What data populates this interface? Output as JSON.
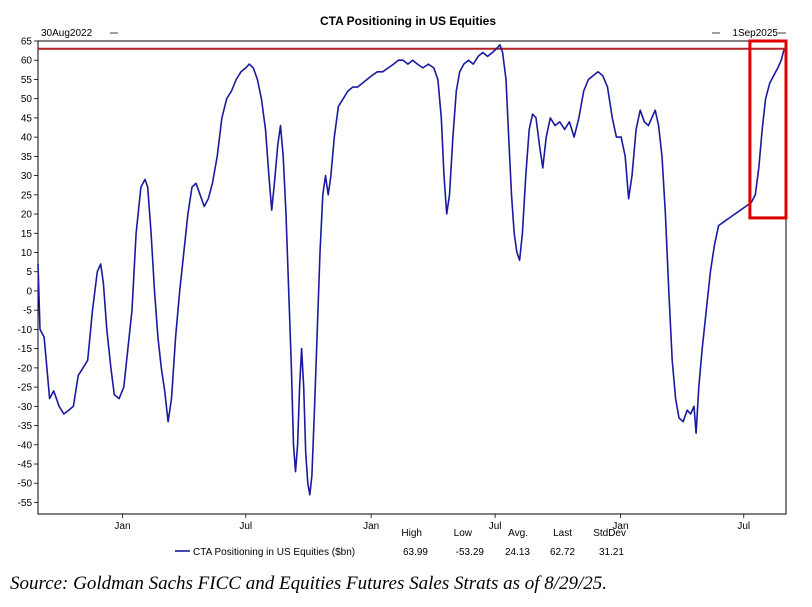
{
  "chart_data": {
    "type": "line",
    "title": "CTA Positioning in US Equities",
    "range_start_label": "30Aug2022",
    "range_end_label": "1Sep2025",
    "x_start": "2022-08-30",
    "x_end": "2025-09-01",
    "ylim": [
      -58,
      65
    ],
    "yticks": [
      65,
      60,
      55,
      50,
      45,
      40,
      35,
      30,
      25,
      20,
      15,
      10,
      5,
      0,
      -5,
      -10,
      -15,
      -20,
      -25,
      -30,
      -35,
      -40,
      -45,
      -50,
      -55
    ],
    "xticks": [
      {
        "label": "Jan",
        "date": "2023-01-01"
      },
      {
        "label": "Jul",
        "date": "2023-07-01"
      },
      {
        "label": "Jan",
        "date": "2024-01-01"
      },
      {
        "label": "Jul",
        "date": "2024-07-01"
      },
      {
        "label": "Jan",
        "date": "2025-01-01"
      },
      {
        "label": "Jul",
        "date": "2025-07-01"
      }
    ],
    "grid": false,
    "reference_line": {
      "value": 63,
      "color": "#b22222"
    },
    "highlight_box": {
      "from": "2025-07-10",
      "to": "2025-09-01",
      "y_from": 19,
      "y_to": 65,
      "color": "#e00000"
    },
    "series": [
      {
        "name": "CTA Positioning in US Equities ($bn)",
        "color": "#1a1aa0",
        "points": [
          [
            "2022-08-30",
            7
          ],
          [
            "2022-09-02",
            -10
          ],
          [
            "2022-09-08",
            -12
          ],
          [
            "2022-09-12",
            -20
          ],
          [
            "2022-09-16",
            -28
          ],
          [
            "2022-09-22",
            -26
          ],
          [
            "2022-09-30",
            -30
          ],
          [
            "2022-10-07",
            -32
          ],
          [
            "2022-10-14",
            -31
          ],
          [
            "2022-10-21",
            -30
          ],
          [
            "2022-10-28",
            -22
          ],
          [
            "2022-11-04",
            -20
          ],
          [
            "2022-11-11",
            -18
          ],
          [
            "2022-11-18",
            -5
          ],
          [
            "2022-11-25",
            5
          ],
          [
            "2022-11-30",
            7
          ],
          [
            "2022-12-04",
            2
          ],
          [
            "2022-12-09",
            -10
          ],
          [
            "2022-12-15",
            -20
          ],
          [
            "2022-12-20",
            -27
          ],
          [
            "2022-12-27",
            -28
          ],
          [
            "2023-01-03",
            -25
          ],
          [
            "2023-01-09",
            -15
          ],
          [
            "2023-01-15",
            -5
          ],
          [
            "2023-01-21",
            15
          ],
          [
            "2023-01-28",
            27
          ],
          [
            "2023-02-03",
            29
          ],
          [
            "2023-02-07",
            27
          ],
          [
            "2023-02-12",
            15
          ],
          [
            "2023-02-17",
            0
          ],
          [
            "2023-02-22",
            -12
          ],
          [
            "2023-02-27",
            -20
          ],
          [
            "2023-03-04",
            -26
          ],
          [
            "2023-03-09",
            -34
          ],
          [
            "2023-03-14",
            -28
          ],
          [
            "2023-03-20",
            -12
          ],
          [
            "2023-03-26",
            0
          ],
          [
            "2023-04-01",
            10
          ],
          [
            "2023-04-07",
            20
          ],
          [
            "2023-04-13",
            27
          ],
          [
            "2023-04-19",
            28
          ],
          [
            "2023-04-25",
            25
          ],
          [
            "2023-05-01",
            22
          ],
          [
            "2023-05-07",
            24
          ],
          [
            "2023-05-13",
            28
          ],
          [
            "2023-05-20",
            35
          ],
          [
            "2023-05-27",
            45
          ],
          [
            "2023-06-03",
            50
          ],
          [
            "2023-06-10",
            52
          ],
          [
            "2023-06-17",
            55
          ],
          [
            "2023-06-24",
            57
          ],
          [
            "2023-07-01",
            58
          ],
          [
            "2023-07-06",
            59
          ],
          [
            "2023-07-12",
            58
          ],
          [
            "2023-07-18",
            55
          ],
          [
            "2023-07-24",
            50
          ],
          [
            "2023-07-30",
            42
          ],
          [
            "2023-08-04",
            30
          ],
          [
            "2023-08-08",
            21
          ],
          [
            "2023-08-12",
            28
          ],
          [
            "2023-08-17",
            38
          ],
          [
            "2023-08-21",
            43
          ],
          [
            "2023-08-25",
            35
          ],
          [
            "2023-08-29",
            20
          ],
          [
            "2023-09-02",
            0
          ],
          [
            "2023-09-06",
            -20
          ],
          [
            "2023-09-09",
            -40
          ],
          [
            "2023-09-12",
            -47
          ],
          [
            "2023-09-15",
            -40
          ],
          [
            "2023-09-18",
            -25
          ],
          [
            "2023-09-21",
            -15
          ],
          [
            "2023-09-24",
            -25
          ],
          [
            "2023-09-27",
            -42
          ],
          [
            "2023-09-30",
            -50
          ],
          [
            "2023-10-03",
            -53
          ],
          [
            "2023-10-06",
            -48
          ],
          [
            "2023-10-10",
            -30
          ],
          [
            "2023-10-14",
            -10
          ],
          [
            "2023-10-18",
            10
          ],
          [
            "2023-10-22",
            25
          ],
          [
            "2023-10-26",
            30
          ],
          [
            "2023-10-30",
            25
          ],
          [
            "2023-11-03",
            30
          ],
          [
            "2023-11-08",
            40
          ],
          [
            "2023-11-14",
            48
          ],
          [
            "2023-11-21",
            50
          ],
          [
            "2023-11-28",
            52
          ],
          [
            "2023-12-05",
            53
          ],
          [
            "2023-12-12",
            53
          ],
          [
            "2023-12-19",
            54
          ],
          [
            "2023-12-26",
            55
          ],
          [
            "2024-01-02",
            56
          ],
          [
            "2024-01-10",
            57
          ],
          [
            "2024-01-18",
            57
          ],
          [
            "2024-01-26",
            58
          ],
          [
            "2024-02-03",
            59
          ],
          [
            "2024-02-10",
            60
          ],
          [
            "2024-02-17",
            60
          ],
          [
            "2024-02-24",
            59
          ],
          [
            "2024-03-02",
            60
          ],
          [
            "2024-03-09",
            59
          ],
          [
            "2024-03-17",
            58
          ],
          [
            "2024-03-25",
            59
          ],
          [
            "2024-04-02",
            58
          ],
          [
            "2024-04-08",
            55
          ],
          [
            "2024-04-13",
            45
          ],
          [
            "2024-04-17",
            30
          ],
          [
            "2024-04-21",
            20
          ],
          [
            "2024-04-25",
            25
          ],
          [
            "2024-04-30",
            40
          ],
          [
            "2024-05-05",
            52
          ],
          [
            "2024-05-10",
            57
          ],
          [
            "2024-05-16",
            59
          ],
          [
            "2024-05-23",
            60
          ],
          [
            "2024-05-30",
            59
          ],
          [
            "2024-06-06",
            61
          ],
          [
            "2024-06-13",
            62
          ],
          [
            "2024-06-20",
            61
          ],
          [
            "2024-06-27",
            62
          ],
          [
            "2024-07-03",
            63
          ],
          [
            "2024-07-08",
            64
          ],
          [
            "2024-07-12",
            62
          ],
          [
            "2024-07-17",
            55
          ],
          [
            "2024-07-21",
            40
          ],
          [
            "2024-07-25",
            25
          ],
          [
            "2024-07-29",
            15
          ],
          [
            "2024-08-02",
            10
          ],
          [
            "2024-08-06",
            8
          ],
          [
            "2024-08-10",
            15
          ],
          [
            "2024-08-15",
            30
          ],
          [
            "2024-08-20",
            42
          ],
          [
            "2024-08-25",
            46
          ],
          [
            "2024-08-30",
            45
          ],
          [
            "2024-09-04",
            38
          ],
          [
            "2024-09-09",
            32
          ],
          [
            "2024-09-14",
            40
          ],
          [
            "2024-09-20",
            45
          ],
          [
            "2024-09-27",
            43
          ],
          [
            "2024-10-04",
            44
          ],
          [
            "2024-10-11",
            42
          ],
          [
            "2024-10-18",
            44
          ],
          [
            "2024-10-25",
            40
          ],
          [
            "2024-11-01",
            45
          ],
          [
            "2024-11-08",
            52
          ],
          [
            "2024-11-15",
            55
          ],
          [
            "2024-11-22",
            56
          ],
          [
            "2024-11-29",
            57
          ],
          [
            "2024-12-06",
            56
          ],
          [
            "2024-12-13",
            53
          ],
          [
            "2024-12-20",
            45
          ],
          [
            "2024-12-26",
            40
          ],
          [
            "2025-01-02",
            40
          ],
          [
            "2025-01-08",
            35
          ],
          [
            "2025-01-13",
            24
          ],
          [
            "2025-01-18",
            30
          ],
          [
            "2025-01-24",
            42
          ],
          [
            "2025-01-30",
            47
          ],
          [
            "2025-02-05",
            44
          ],
          [
            "2025-02-11",
            43
          ],
          [
            "2025-02-16",
            45
          ],
          [
            "2025-02-21",
            47
          ],
          [
            "2025-02-26",
            43
          ],
          [
            "2025-03-03",
            35
          ],
          [
            "2025-03-08",
            20
          ],
          [
            "2025-03-13",
            0
          ],
          [
            "2025-03-18",
            -18
          ],
          [
            "2025-03-23",
            -28
          ],
          [
            "2025-03-28",
            -33
          ],
          [
            "2025-04-03",
            -34
          ],
          [
            "2025-04-09",
            -31
          ],
          [
            "2025-04-14",
            -32
          ],
          [
            "2025-04-19",
            -30
          ],
          [
            "2025-04-22",
            -37
          ],
          [
            "2025-04-26",
            -25
          ],
          [
            "2025-05-01",
            -15
          ],
          [
            "2025-05-07",
            -5
          ],
          [
            "2025-05-13",
            5
          ],
          [
            "2025-05-19",
            12
          ],
          [
            "2025-05-25",
            17
          ],
          [
            "2025-06-02",
            18
          ],
          [
            "2025-06-10",
            19
          ],
          [
            "2025-06-18",
            20
          ],
          [
            "2025-06-26",
            21
          ],
          [
            "2025-07-04",
            22
          ],
          [
            "2025-07-12",
            23
          ],
          [
            "2025-07-18",
            25
          ],
          [
            "2025-07-23",
            32
          ],
          [
            "2025-07-28",
            42
          ],
          [
            "2025-08-02",
            50
          ],
          [
            "2025-08-08",
            54
          ],
          [
            "2025-08-14",
            56
          ],
          [
            "2025-08-20",
            58
          ],
          [
            "2025-08-25",
            60
          ],
          [
            "2025-08-29",
            62.72
          ]
        ]
      }
    ],
    "stats": {
      "headers": [
        "High",
        "Low",
        "Avg.",
        "Last",
        "StdDev"
      ],
      "values": [
        "63.99",
        "-53.29",
        "24.13",
        "62.72",
        "31.21"
      ]
    }
  },
  "source_note": "Source: Goldman Sachs FICC and Equities Futures Sales Strats as of 8/29/25."
}
